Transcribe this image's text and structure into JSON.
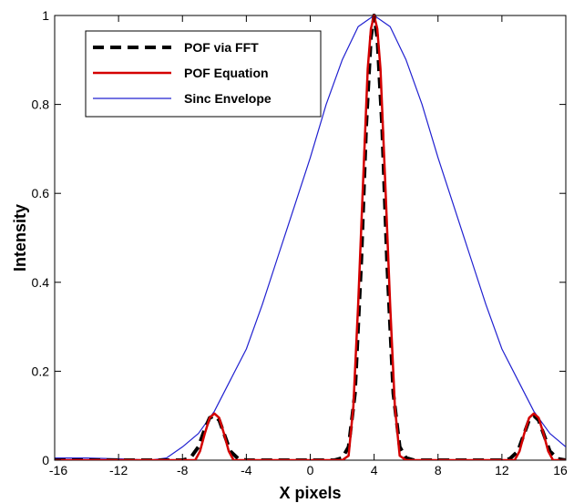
{
  "chart_data": {
    "type": "line",
    "title": "",
    "xlabel": "X pixels",
    "ylabel": "Intensity",
    "xlim": [
      -16,
      16
    ],
    "ylim": [
      0,
      1
    ],
    "x_ticks": [
      -16,
      -12,
      -8,
      -4,
      0,
      4,
      8,
      12,
      16
    ],
    "x_tick_labels": [
      "-16",
      "-12",
      "-8",
      "-4",
      "0",
      "4",
      "8",
      "12",
      "16"
    ],
    "y_ticks": [
      0,
      0.2,
      0.4,
      0.6,
      0.8,
      1
    ],
    "y_tick_labels": [
      "0",
      "0.2",
      "0.4",
      "0.6",
      "0.8",
      "1"
    ],
    "grid": false,
    "legend_position": "top-left",
    "series": [
      {
        "name": "POF via FFT",
        "color": "#000000",
        "style": "dashed",
        "x": [
          -16,
          -8,
          -7.5,
          -7,
          -6.6,
          -6.3,
          -6,
          -5.7,
          -5.4,
          -5,
          -4.5,
          -4,
          0,
          1.5,
          2,
          2.4,
          2.8,
          3.2,
          3.5,
          3.8,
          4,
          4.2,
          4.5,
          4.8,
          5.2,
          5.6,
          6,
          6.5,
          7,
          12,
          12.5,
          13,
          13.4,
          13.7,
          14,
          14.3,
          14.6,
          15,
          15.5,
          16
        ],
        "y": [
          0,
          0,
          0.005,
          0.03,
          0.07,
          0.095,
          0.1,
          0.09,
          0.06,
          0.02,
          0.003,
          0,
          0,
          0,
          0.005,
          0.03,
          0.15,
          0.45,
          0.75,
          0.95,
          1.0,
          0.95,
          0.75,
          0.45,
          0.15,
          0.03,
          0.005,
          0,
          0,
          0,
          0.003,
          0.02,
          0.06,
          0.09,
          0.1,
          0.09,
          0.06,
          0.02,
          0.003,
          0
        ]
      },
      {
        "name": "POF Equation",
        "color": "#d40000",
        "style": "solid",
        "x": [
          -16,
          -8,
          -7.2,
          -6.9,
          -6.6,
          -6.3,
          -6,
          -5.7,
          -5.4,
          -5.1,
          -4.8,
          -4,
          0,
          2,
          2.4,
          2.7,
          3,
          3.3,
          3.6,
          3.8,
          4,
          4.2,
          4.4,
          4.7,
          5,
          5.3,
          5.6,
          6,
          12,
          12.8,
          13.1,
          13.4,
          13.7,
          14,
          14.3,
          14.6,
          14.9,
          15.2,
          16
        ],
        "y": [
          0,
          0,
          0,
          0.02,
          0.06,
          0.095,
          0.105,
          0.095,
          0.06,
          0.02,
          0,
          0,
          0,
          0,
          0.01,
          0.12,
          0.35,
          0.62,
          0.88,
          0.97,
          1.0,
          0.97,
          0.88,
          0.62,
          0.35,
          0.12,
          0.01,
          0,
          0,
          0,
          0.02,
          0.06,
          0.095,
          0.105,
          0.095,
          0.06,
          0.02,
          0,
          0
        ]
      },
      {
        "name": "Sinc Envelope",
        "color": "#2020d0",
        "style": "solid",
        "x": [
          -16,
          -14,
          -12,
          -10,
          -9,
          -8,
          -7,
          -6,
          -5,
          -4,
          -3,
          -2,
          -1,
          0,
          1,
          2,
          3,
          4,
          5,
          6,
          7,
          8,
          9,
          10,
          11,
          12,
          13,
          14,
          15,
          16
        ],
        "y": [
          0.005,
          0.005,
          0.003,
          0.0,
          0.005,
          0.03,
          0.06,
          0.11,
          0.18,
          0.25,
          0.35,
          0.46,
          0.57,
          0.68,
          0.8,
          0.9,
          0.975,
          1.0,
          0.975,
          0.9,
          0.8,
          0.68,
          0.57,
          0.46,
          0.35,
          0.25,
          0.18,
          0.11,
          0.06,
          0.03
        ]
      }
    ]
  }
}
